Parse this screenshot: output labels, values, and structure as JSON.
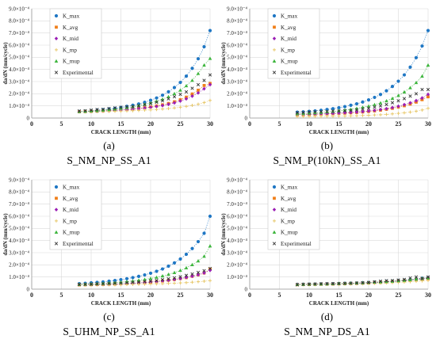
{
  "series_styles": [
    {
      "name": "K_max",
      "color": "#1f77c4",
      "marker": "circle"
    },
    {
      "name": "K_avg",
      "color": "#f07f1a",
      "marker": "square"
    },
    {
      "name": "K_mid",
      "color": "#9b1fb5",
      "marker": "diamond"
    },
    {
      "name": "K_mp",
      "color": "#e8c96e",
      "marker": "plus"
    },
    {
      "name": "K_mup",
      "color": "#3cb53c",
      "marker": "triangle"
    },
    {
      "name": "Experimental",
      "color": "#333333",
      "marker": "x"
    }
  ],
  "chart_data": [
    {
      "type": "scatter",
      "letter": "(a)",
      "caption": "S_NM_NP_SS_A1",
      "xlabel": "CRACK LENGTH (mm)",
      "ylabel": "da/dN (mm/cycle)",
      "xlim": [
        0,
        30
      ],
      "ylim": [
        0,
        0.0009
      ],
      "xticks": [
        "0",
        "5",
        "10",
        "15",
        "20",
        "25",
        "30"
      ],
      "yticks": [
        "0",
        "1.0×10⁻⁴",
        "2.0×10⁻⁴",
        "3.0×10⁻⁴",
        "4.0×10⁻⁴",
        "5.0×10⁻⁴",
        "6.0×10⁻⁴",
        "7.0×10⁻⁴",
        "8.0×10⁻⁴",
        "9.0×10⁻⁴"
      ],
      "x": [
        8,
        9,
        10,
        11,
        12,
        13,
        14,
        15,
        16,
        17,
        18,
        19,
        20,
        21,
        22,
        23,
        24,
        25,
        26,
        27,
        28,
        29,
        30
      ],
      "series": [
        {
          "name": "K_max",
          "values": [
            5.3e-05,
            5.6e-05,
            6e-05,
            6.5e-05,
            6.9e-05,
            7.4e-05,
            8e-05,
            8.7e-05,
            9.6e-05,
            0.000105,
            0.000116,
            0.00013,
            0.000146,
            0.000165,
            0.000188,
            0.000216,
            0.000251,
            0.000293,
            0.000345,
            0.000409,
            0.000488,
            0.000587,
            0.00072
          ]
        },
        {
          "name": "K_avg",
          "values": [
            5.2e-05,
            5.3e-05,
            5.5e-05,
            5.7e-05,
            5.9e-05,
            6.2e-05,
            6.4e-05,
            6.7e-05,
            7.1e-05,
            7.5e-05,
            8e-05,
            8.5e-05,
            9.2e-05,
            0.0001,
            0.000109,
            0.00012,
            0.000134,
            0.000151,
            0.000172,
            0.000198,
            0.000229,
            0.000268,
            0.000285
          ]
        },
        {
          "name": "K_mid",
          "values": [
            5.2e-05,
            5.3e-05,
            5.5e-05,
            5.6e-05,
            5.8e-05,
            6e-05,
            6.3e-05,
            6.6e-05,
            6.9e-05,
            7.3e-05,
            7.7e-05,
            8.2e-05,
            8.8e-05,
            9.5e-05,
            0.000103,
            0.000113,
            0.000125,
            0.00014,
            0.000158,
            0.00018,
            0.000207,
            0.000241,
            0.000275
          ]
        },
        {
          "name": "K_mp",
          "values": [
            5.1e-05,
            5.1e-05,
            5.2e-05,
            5.3e-05,
            5.4e-05,
            5.5e-05,
            5.6e-05,
            5.7e-05,
            5.9e-05,
            6e-05,
            6.2e-05,
            6.5e-05,
            6.7e-05,
            7e-05,
            7.4e-05,
            7.8e-05,
            8.3e-05,
            8.9e-05,
            9.6e-05,
            0.000104,
            0.000114,
            0.000127,
            0.000145
          ]
        },
        {
          "name": "K_mup",
          "values": [
            5.3e-05,
            5.5e-05,
            5.8e-05,
            6.1e-05,
            6.5e-05,
            6.9e-05,
            7.4e-05,
            8e-05,
            8.6e-05,
            9.3e-05,
            0.000102,
            0.000112,
            0.000124,
            0.000138,
            0.000155,
            0.000175,
            0.0002,
            0.000229,
            0.000265,
            0.00031,
            0.000366,
            0.000435,
            0.00049
          ]
        },
        {
          "name": "Experimental",
          "values": [
            5.8e-05,
            6e-05,
            6.5e-05,
            7e-05,
            7.2e-05,
            7.8e-05,
            8.3e-05,
            8.8e-05,
            9.3e-05,
            9.5e-05,
            0.000101,
            0.00011,
            0.00012,
            0.00013,
            0.000142,
            0.000158,
            0.000175,
            0.000195,
            0.000215,
            0.000245,
            0.000275,
            0.00031,
            0.000355
          ]
        }
      ]
    },
    {
      "type": "scatter",
      "letter": "(b)",
      "caption": "S_NM_P(10kN)_SS_A1",
      "xlabel": "CRACK LENGTH (mm)",
      "ylabel": "da/dN (mm/cycle)",
      "xlim": [
        0,
        30
      ],
      "ylim": [
        0,
        0.0009
      ],
      "xticks": [
        "0",
        "5",
        "10",
        "15",
        "20",
        "25",
        "30"
      ],
      "yticks": [
        "0",
        "1.0×10⁻⁴",
        "2.0×10⁻⁴",
        "3.0×10⁻⁴",
        "4.0×10⁻⁴",
        "5.0×10⁻⁴",
        "6.0×10⁻⁴",
        "7.0×10⁻⁴",
        "8.0×10⁻⁴",
        "9.0×10⁻⁴"
      ],
      "x": [
        8,
        9,
        10,
        11,
        12,
        13,
        14,
        15,
        16,
        17,
        18,
        19,
        20,
        21,
        22,
        23,
        24,
        25,
        26,
        27,
        28,
        29,
        30
      ],
      "series": [
        {
          "name": "K_max",
          "values": [
            4.8e-05,
            5.1e-05,
            5.5e-05,
            5.9e-05,
            6.4e-05,
            7e-05,
            7.7e-05,
            8.5e-05,
            9.4e-05,
            0.000105,
            0.000117,
            0.000132,
            0.000149,
            0.00017,
            0.000194,
            0.000224,
            0.00026,
            0.000303,
            0.000355,
            0.000419,
            0.000497,
            0.000593,
            0.00072
          ]
        },
        {
          "name": "K_avg",
          "values": [
            2.8e-05,
            2.9e-05,
            3e-05,
            3.1e-05,
            3.3e-05,
            3.4e-05,
            3.6e-05,
            3.8e-05,
            4e-05,
            4.3e-05,
            4.6e-05,
            5e-05,
            5.4e-05,
            5.9e-05,
            6.5e-05,
            7.2e-05,
            8e-05,
            9e-05,
            0.000101,
            0.000115,
            0.000131,
            0.000151,
            0.000175
          ]
        },
        {
          "name": "K_mid",
          "values": [
            2.9e-05,
            3e-05,
            3.1e-05,
            3.2e-05,
            3.4e-05,
            3.6e-05,
            3.8e-05,
            4e-05,
            4.3e-05,
            4.6e-05,
            4.9e-05,
            5.3e-05,
            5.8e-05,
            6.3e-05,
            7e-05,
            7.7e-05,
            8.6e-05,
            9.7e-05,
            0.00011,
            0.000125,
            0.000143,
            0.000165,
            0.000195
          ]
        },
        {
          "name": "K_mp",
          "values": [
            1.2e-05,
            1.2e-05,
            1.3e-05,
            1.3e-05,
            1.4e-05,
            1.4e-05,
            1.5e-05,
            1.6e-05,
            1.7e-05,
            1.8e-05,
            1.9e-05,
            2.1e-05,
            2.3e-05,
            2.5e-05,
            2.7e-05,
            3e-05,
            3.4e-05,
            3.8e-05,
            4.3e-05,
            4.9e-05,
            5.6e-05,
            6.6e-05,
            8e-05
          ]
        },
        {
          "name": "K_mup",
          "values": [
            3.5e-05,
            3.7e-05,
            4e-05,
            4.3e-05,
            4.6e-05,
            5e-05,
            5.4e-05,
            5.9e-05,
            6.5e-05,
            7.1e-05,
            7.9e-05,
            8.8e-05,
            9.8e-05,
            0.00011,
            0.000124,
            0.000141,
            0.000161,
            0.000185,
            0.000214,
            0.000249,
            0.000291,
            0.000344,
            0.000435
          ]
        },
        {
          "name": "Experimental",
          "values": [
            4.4e-05,
            4.6e-05,
            5e-05,
            5.1e-05,
            5.3e-05,
            5.4e-05,
            5.7e-05,
            5.8e-05,
            6e-05,
            6.3e-05,
            6.8e-05,
            7.4e-05,
            8.1e-05,
            9e-05,
            0.0001,
            0.000112,
            0.000126,
            0.000142,
            0.00016,
            0.00018,
            0.0002,
            0.000235,
            0.000235
          ]
        }
      ]
    },
    {
      "type": "scatter",
      "letter": "(c)",
      "caption": "S_UHM_NP_SS_A1",
      "xlabel": "CRACK LENGTH (mm)",
      "ylabel": "da/dN (mm/cycle)",
      "xlim": [
        0,
        30
      ],
      "ylim": [
        0,
        0.0009
      ],
      "xticks": [
        "0",
        "5",
        "10",
        "15",
        "20",
        "25",
        "30"
      ],
      "yticks": [
        "0",
        "1.0×10⁻⁴",
        "2.0×10⁻⁴",
        "3.0×10⁻⁴",
        "4.0×10⁻⁴",
        "5.0×10⁻⁴",
        "6.0×10⁻⁴",
        "7.0×10⁻⁴",
        "8.0×10⁻⁴",
        "9.0×10⁻⁴"
      ],
      "x": [
        8,
        9,
        10,
        11,
        12,
        13,
        14,
        15,
        16,
        17,
        18,
        19,
        20,
        21,
        22,
        23,
        24,
        25,
        26,
        27,
        28,
        29,
        30
      ],
      "series": [
        {
          "name": "K_max",
          "values": [
            4.5e-05,
            4.8e-05,
            5.2e-05,
            5.6e-05,
            6e-05,
            6.5e-05,
            7.1e-05,
            7.8e-05,
            8.6e-05,
            9.5e-05,
            0.000105,
            0.000117,
            0.000131,
            0.000147,
            0.000166,
            0.000189,
            0.000216,
            0.000248,
            0.000287,
            0.000334,
            0.000391,
            0.00046,
            0.0006
          ]
        },
        {
          "name": "K_avg",
          "values": [
            3.5e-05,
            3.6e-05,
            3.7e-05,
            3.8e-05,
            3.9e-05,
            4.1e-05,
            4.2e-05,
            4.4e-05,
            4.6e-05,
            4.9e-05,
            5.1e-05,
            5.5e-05,
            5.8e-05,
            6.2e-05,
            6.7e-05,
            7.3e-05,
            7.9e-05,
            8.7e-05,
            9.5e-05,
            0.000106,
            0.000118,
            0.000133,
            0.000165
          ]
        },
        {
          "name": "K_mid",
          "values": [
            3.6e-05,
            3.7e-05,
            3.8e-05,
            3.9e-05,
            4e-05,
            4.1e-05,
            4.3e-05,
            4.5e-05,
            4.7e-05,
            4.9e-05,
            5.2e-05,
            5.5e-05,
            5.9e-05,
            6.3e-05,
            6.8e-05,
            7.3e-05,
            8e-05,
            8.7e-05,
            9.6e-05,
            0.000106,
            0.000118,
            0.000133,
            0.000155
          ]
        },
        {
          "name": "K_mp",
          "values": [
            3.4e-05,
            3.4e-05,
            3.4e-05,
            3.5e-05,
            3.5e-05,
            3.6e-05,
            3.6e-05,
            3.7e-05,
            3.8e-05,
            3.9e-05,
            4e-05,
            4.1e-05,
            4.2e-05,
            4.3e-05,
            4.5e-05,
            4.7e-05,
            4.9e-05,
            5.1e-05,
            5.4e-05,
            5.7e-05,
            6.1e-05,
            6.5e-05,
            7e-05
          ]
        },
        {
          "name": "K_mup",
          "values": [
            3.8e-05,
            4e-05,
            4.2e-05,
            4.4e-05,
            4.7e-05,
            5e-05,
            5.3e-05,
            5.7e-05,
            6.2e-05,
            6.7e-05,
            7.3e-05,
            8e-05,
            8.8e-05,
            9.7e-05,
            0.000108,
            0.000121,
            0.000136,
            0.000154,
            0.000175,
            0.000201,
            0.000232,
            0.00027,
            0.000355
          ]
        },
        {
          "name": "Experimental",
          "values": [
            3.8e-05,
            4e-05,
            4.1e-05,
            4.3e-05,
            4.4e-05,
            4.6e-05,
            4.8e-05,
            5e-05,
            5.3e-05,
            5.6e-05,
            5.9e-05,
            6.3e-05,
            6.7e-05,
            7.2e-05,
            7.8e-05,
            8.5e-05,
            9.3e-05,
            0.000102,
            0.000113,
            0.000125,
            0.000138,
            0.000152,
            0.00017
          ]
        }
      ]
    },
    {
      "type": "scatter",
      "letter": "(d)",
      "caption": "S_NM_NP_DS_A1",
      "xlabel": "CRACK LENGTH (mm)",
      "ylabel": "da/dN (mm/cycle)",
      "xlim": [
        0,
        30
      ],
      "ylim": [
        0,
        0.0009
      ],
      "xticks": [
        "0",
        "5",
        "10",
        "15",
        "20",
        "25",
        "30"
      ],
      "yticks": [
        "0",
        "1.0×10⁻⁴",
        "2.0×10⁻⁴",
        "3.0×10⁻⁴",
        "4.0×10⁻⁴",
        "5.0×10⁻⁴",
        "6.0×10⁻⁴",
        "7.0×10⁻⁴",
        "8.0×10⁻⁴",
        "9.0×10⁻⁴"
      ],
      "x": [
        8,
        9,
        10,
        11,
        12,
        13,
        14,
        15,
        16,
        17,
        18,
        19,
        20,
        21,
        22,
        23,
        24,
        25,
        26,
        27,
        28,
        29,
        30
      ],
      "series": [
        {
          "name": "K_max",
          "values": [
            3.9e-05,
            4e-05,
            4.1e-05,
            4.2e-05,
            4.3e-05,
            4.4e-05,
            4.5e-05,
            4.6e-05,
            4.8e-05,
            4.9e-05,
            5.1e-05,
            5.3e-05,
            5.5e-05,
            5.7e-05,
            6e-05,
            6.3e-05,
            6.6e-05,
            7e-05,
            7.4e-05,
            7.9e-05,
            8.4e-05,
            9e-05,
            9.5e-05
          ]
        },
        {
          "name": "K_avg",
          "values": [
            3.7e-05,
            3.8e-05,
            3.9e-05,
            4e-05,
            4.1e-05,
            4.2e-05,
            4.3e-05,
            4.4e-05,
            4.5e-05,
            4.7e-05,
            4.8e-05,
            5e-05,
            5.2e-05,
            5.4e-05,
            5.6e-05,
            5.9e-05,
            6.2e-05,
            6.5e-05,
            6.9e-05,
            7.3e-05,
            7.8e-05,
            8.3e-05,
            8.8e-05
          ]
        },
        {
          "name": "K_mid",
          "values": [
            3.8e-05,
            3.9e-05,
            4e-05,
            4.1e-05,
            4.2e-05,
            4.3e-05,
            4.4e-05,
            4.5e-05,
            4.6e-05,
            4.8e-05,
            4.9e-05,
            5.1e-05,
            5.3e-05,
            5.5e-05,
            5.7e-05,
            6e-05,
            6.3e-05,
            6.6e-05,
            7e-05,
            7.4e-05,
            7.9e-05,
            8.4e-05,
            9e-05
          ]
        },
        {
          "name": "K_mp",
          "values": [
            3.6e-05,
            3.6e-05,
            3.7e-05,
            3.7e-05,
            3.8e-05,
            3.9e-05,
            3.9e-05,
            4e-05,
            4.1e-05,
            4.2e-05,
            4.3e-05,
            4.4e-05,
            4.6e-05,
            4.7e-05,
            4.9e-05,
            5.1e-05,
            5.3e-05,
            5.5e-05,
            5.8e-05,
            6.1e-05,
            6.4e-05,
            6.8e-05,
            7.2e-05
          ]
        },
        {
          "name": "K_mup",
          "values": [
            3.8e-05,
            3.9e-05,
            4e-05,
            4.1e-05,
            4.2e-05,
            4.3e-05,
            4.4e-05,
            4.6e-05,
            4.7e-05,
            4.9e-05,
            5e-05,
            5.2e-05,
            5.4e-05,
            5.7e-05,
            5.9e-05,
            6.2e-05,
            6.5e-05,
            6.9e-05,
            7.3e-05,
            7.7e-05,
            8.2e-05,
            8.7e-05,
            9.2e-05
          ]
        },
        {
          "name": "Experimental",
          "values": [
            3.6e-05,
            3.9e-05,
            4.1e-05,
            4.2e-05,
            4.3e-05,
            4.4e-05,
            4.5e-05,
            4.6e-05,
            4.7e-05,
            4.8e-05,
            5e-05,
            5.2e-05,
            5.5e-05,
            6e-05,
            6.5e-05,
            7e-05,
            7e-05,
            7.5e-05,
            8e-05,
            9.2e-05,
            0.0001,
            8.8e-05,
            0.0001
          ]
        }
      ]
    }
  ]
}
